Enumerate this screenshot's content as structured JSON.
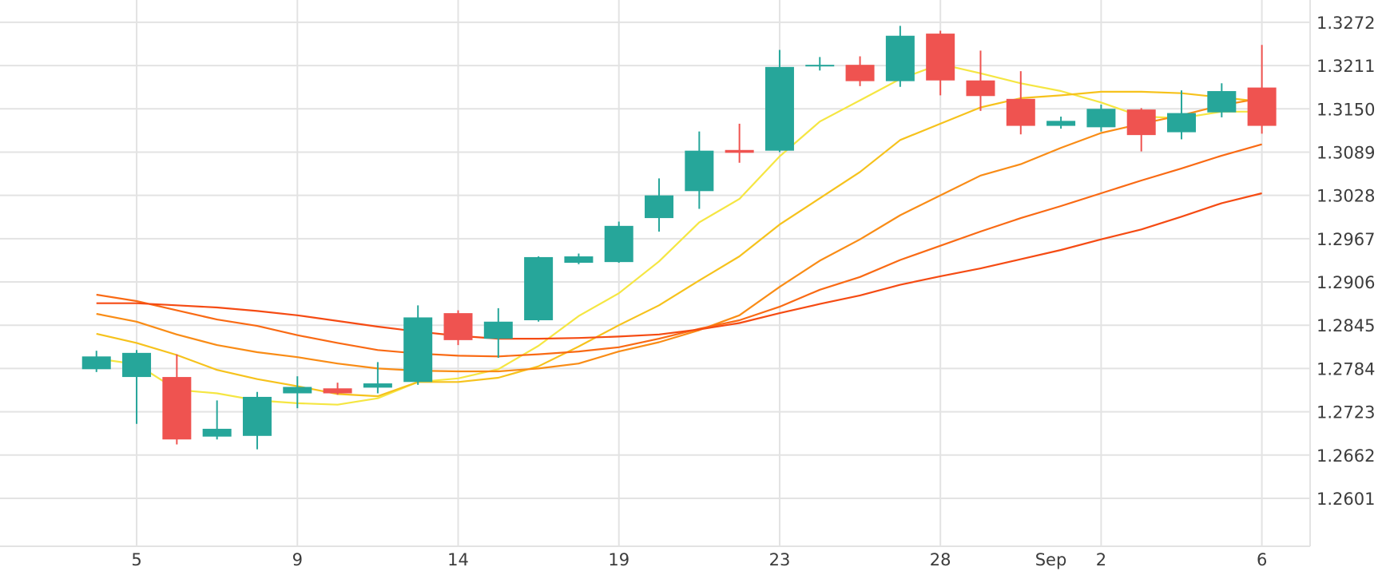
{
  "colors": {
    "up": "#26a69a",
    "down": "#ef5350",
    "grid": "#e3e3e3",
    "text": "#3c3c3c",
    "background": "#ffffff"
  },
  "chart_data": {
    "type": "candlestick",
    "ylim": [
      1.254,
      1.33
    ],
    "y_axis_position": "right",
    "grid": true,
    "y_ticks": [
      {
        "value": 1.3272,
        "label": "1.3272"
      },
      {
        "value": 1.3211,
        "label": "1.3211"
      },
      {
        "value": 1.315,
        "label": "1.3150"
      },
      {
        "value": 1.3089,
        "label": "1.3089"
      },
      {
        "value": 1.3028,
        "label": "1.3028"
      },
      {
        "value": 1.2967,
        "label": "1.2967"
      },
      {
        "value": 1.2906,
        "label": "1.2906"
      },
      {
        "value": 1.2845,
        "label": "1.2845"
      },
      {
        "value": 1.2784,
        "label": "1.2784"
      },
      {
        "value": 1.2723,
        "label": "1.2723"
      },
      {
        "value": 1.2662,
        "label": "1.2662"
      },
      {
        "value": 1.2601,
        "label": "1.2601"
      }
    ],
    "x_index_range": [
      -3.4,
      29.2
    ],
    "x_ticks": [
      {
        "index": 0,
        "label": "5"
      },
      {
        "index": 4,
        "label": "9"
      },
      {
        "index": 8,
        "label": "14"
      },
      {
        "index": 12,
        "label": "19"
      },
      {
        "index": 16,
        "label": "23"
      },
      {
        "index": 20,
        "label": "28"
      },
      {
        "index": 22.75,
        "label": "Sep"
      },
      {
        "index": 24,
        "label": "2"
      },
      {
        "index": 28,
        "label": "6"
      }
    ],
    "x_gridlines": [
      0,
      4,
      8,
      12,
      16,
      20,
      24,
      28
    ],
    "candles": [
      {
        "i": -1,
        "o": 1.2783,
        "h": 1.2809,
        "l": 1.2779,
        "c": 1.2801
      },
      {
        "i": 0,
        "o": 1.2772,
        "h": 1.281,
        "l": 1.2706,
        "c": 1.2806
      },
      {
        "i": 1,
        "o": 1.2772,
        "h": 1.2804,
        "l": 1.2677,
        "c": 1.2684
      },
      {
        "i": 2,
        "o": 1.2688,
        "h": 1.2739,
        "l": 1.2684,
        "c": 1.2699
      },
      {
        "i": 3,
        "o": 1.2689,
        "h": 1.2751,
        "l": 1.267,
        "c": 1.2744
      },
      {
        "i": 4,
        "o": 1.2749,
        "h": 1.2773,
        "l": 1.2728,
        "c": 1.2758
      },
      {
        "i": 5,
        "o": 1.2756,
        "h": 1.2764,
        "l": 1.2747,
        "c": 1.2749
      },
      {
        "i": 6,
        "o": 1.2757,
        "h": 1.2793,
        "l": 1.2749,
        "c": 1.2763
      },
      {
        "i": 7,
        "o": 1.2765,
        "h": 1.2873,
        "l": 1.2761,
        "c": 1.2856
      },
      {
        "i": 8,
        "o": 1.2862,
        "h": 1.2866,
        "l": 1.2817,
        "c": 1.2824
      },
      {
        "i": 9,
        "o": 1.2826,
        "h": 1.2869,
        "l": 1.2799,
        "c": 1.285
      },
      {
        "i": 10,
        "o": 1.2852,
        "h": 1.2942,
        "l": 1.285,
        "c": 1.2941
      },
      {
        "i": 11,
        "o": 1.2933,
        "h": 1.2946,
        "l": 1.2931,
        "c": 1.2942
      },
      {
        "i": 12,
        "o": 1.2934,
        "h": 1.2991,
        "l": 1.2933,
        "c": 1.2985
      },
      {
        "i": 13,
        "o": 1.2996,
        "h": 1.3052,
        "l": 1.2977,
        "c": 1.3028
      },
      {
        "i": 14,
        "o": 1.3034,
        "h": 1.3118,
        "l": 1.3009,
        "c": 1.3091
      },
      {
        "i": 15,
        "o": 1.3092,
        "h": 1.3129,
        "l": 1.3074,
        "c": 1.3088
      },
      {
        "i": 16,
        "o": 1.3091,
        "h": 1.3233,
        "l": 1.3089,
        "c": 1.3209
      },
      {
        "i": 17,
        "o": 1.3212,
        "h": 1.3223,
        "l": 1.3204,
        "c": 1.3212
      },
      {
        "i": 18,
        "o": 1.3212,
        "h": 1.3224,
        "l": 1.3182,
        "c": 1.3189
      },
      {
        "i": 19,
        "o": 1.3189,
        "h": 1.3267,
        "l": 1.3181,
        "c": 1.3253
      },
      {
        "i": 20,
        "o": 1.3256,
        "h": 1.326,
        "l": 1.3169,
        "c": 1.319
      },
      {
        "i": 21,
        "o": 1.319,
        "h": 1.3232,
        "l": 1.3147,
        "c": 1.3168
      },
      {
        "i": 22,
        "o": 1.3164,
        "h": 1.3203,
        "l": 1.3114,
        "c": 1.3126
      },
      {
        "i": 23,
        "o": 1.3126,
        "h": 1.3139,
        "l": 1.3122,
        "c": 1.3133
      },
      {
        "i": 24,
        "o": 1.3124,
        "h": 1.3156,
        "l": 1.3118,
        "c": 1.315
      },
      {
        "i": 25,
        "o": 1.3149,
        "h": 1.3151,
        "l": 1.309,
        "c": 1.3113
      },
      {
        "i": 26,
        "o": 1.3117,
        "h": 1.3176,
        "l": 1.3107,
        "c": 1.3144
      },
      {
        "i": 27,
        "o": 1.3145,
        "h": 1.3186,
        "l": 1.3138,
        "c": 1.3175
      },
      {
        "i": 28,
        "o": 1.318,
        "h": 1.324,
        "l": 1.3115,
        "c": 1.3126
      }
    ],
    "moving_averages": [
      {
        "color": "#f5e642",
        "points": [
          [
            -1,
            1.2798
          ],
          [
            0,
            1.279
          ],
          [
            1,
            1.2754
          ],
          [
            2,
            1.2749
          ],
          [
            3,
            1.2739
          ],
          [
            4,
            1.2735
          ],
          [
            5,
            1.2733
          ],
          [
            6,
            1.2742
          ],
          [
            7,
            1.2765
          ],
          [
            8,
            1.277
          ],
          [
            9,
            1.2783
          ],
          [
            10,
            1.2816
          ],
          [
            11,
            1.2858
          ],
          [
            12,
            1.289
          ],
          [
            13,
            1.2935
          ],
          [
            14,
            1.299
          ],
          [
            15,
            1.3023
          ],
          [
            16,
            1.3083
          ],
          [
            17,
            1.3132
          ],
          [
            18,
            1.3162
          ],
          [
            19,
            1.3192
          ],
          [
            20,
            1.3213
          ],
          [
            21,
            1.32
          ],
          [
            22,
            1.3186
          ],
          [
            23,
            1.3175
          ],
          [
            24,
            1.3159
          ],
          [
            25,
            1.3139
          ],
          [
            26,
            1.3137
          ],
          [
            27,
            1.3146
          ],
          [
            28,
            1.3146
          ]
        ]
      },
      {
        "color": "#f6c21c",
        "points": [
          [
            -1,
            1.2833
          ],
          [
            0,
            1.282
          ],
          [
            1,
            1.2803
          ],
          [
            2,
            1.2782
          ],
          [
            3,
            1.2769
          ],
          [
            4,
            1.2759
          ],
          [
            5,
            1.2748
          ],
          [
            6,
            1.2745
          ],
          [
            7,
            1.2765
          ],
          [
            8,
            1.2765
          ],
          [
            9,
            1.2771
          ],
          [
            10,
            1.2787
          ],
          [
            11,
            1.2815
          ],
          [
            12,
            1.2845
          ],
          [
            13,
            1.2873
          ],
          [
            14,
            1.2908
          ],
          [
            15,
            1.2942
          ],
          [
            16,
            1.2987
          ],
          [
            17,
            1.3024
          ],
          [
            18,
            1.3061
          ],
          [
            19,
            1.3106
          ],
          [
            20,
            1.3129
          ],
          [
            21,
            1.3152
          ],
          [
            22,
            1.3165
          ],
          [
            23,
            1.3169
          ],
          [
            24,
            1.3174
          ],
          [
            25,
            1.3174
          ],
          [
            26,
            1.3172
          ],
          [
            27,
            1.3166
          ],
          [
            28,
            1.316
          ]
        ]
      },
      {
        "color": "#f98c16",
        "points": [
          [
            -1,
            1.2861
          ],
          [
            0,
            1.285
          ],
          [
            1,
            1.2832
          ],
          [
            2,
            1.2817
          ],
          [
            3,
            1.2807
          ],
          [
            4,
            1.28
          ],
          [
            5,
            1.2791
          ],
          [
            6,
            1.2784
          ],
          [
            7,
            1.2781
          ],
          [
            8,
            1.278
          ],
          [
            9,
            1.278
          ],
          [
            10,
            1.2784
          ],
          [
            11,
            1.2791
          ],
          [
            12,
            1.2808
          ],
          [
            13,
            1.2821
          ],
          [
            14,
            1.2838
          ],
          [
            15,
            1.2859
          ],
          [
            16,
            1.2899
          ],
          [
            17,
            1.2936
          ],
          [
            18,
            1.2966
          ],
          [
            19,
            1.3
          ],
          [
            20,
            1.3028
          ],
          [
            21,
            1.3056
          ],
          [
            22,
            1.3072
          ],
          [
            23,
            1.3095
          ],
          [
            24,
            1.3116
          ],
          [
            25,
            1.3129
          ],
          [
            26,
            1.3141
          ],
          [
            27,
            1.3155
          ],
          [
            28,
            1.3165
          ]
        ]
      },
      {
        "color": "#f96a14",
        "points": [
          [
            -1,
            1.2888
          ],
          [
            0,
            1.2879
          ],
          [
            1,
            1.2866
          ],
          [
            2,
            1.2853
          ],
          [
            3,
            1.2844
          ],
          [
            4,
            1.2831
          ],
          [
            5,
            1.282
          ],
          [
            6,
            1.281
          ],
          [
            7,
            1.2805
          ],
          [
            8,
            1.2802
          ],
          [
            9,
            1.2801
          ],
          [
            10,
            1.2804
          ],
          [
            11,
            1.2808
          ],
          [
            12,
            1.2814
          ],
          [
            13,
            1.2826
          ],
          [
            14,
            1.284
          ],
          [
            15,
            1.2852
          ],
          [
            16,
            1.2871
          ],
          [
            17,
            1.2895
          ],
          [
            18,
            1.2913
          ],
          [
            19,
            1.2937
          ],
          [
            20,
            1.2957
          ],
          [
            21,
            1.2977
          ],
          [
            22,
            1.2996
          ],
          [
            23,
            1.3013
          ],
          [
            24,
            1.3031
          ],
          [
            25,
            1.3049
          ],
          [
            26,
            1.3066
          ],
          [
            27,
            1.3084
          ],
          [
            28,
            1.31
          ]
        ]
      },
      {
        "color": "#f54b13",
        "points": [
          [
            -1,
            1.2876
          ],
          [
            0,
            1.2876
          ],
          [
            1,
            1.2873
          ],
          [
            2,
            1.287
          ],
          [
            3,
            1.2865
          ],
          [
            4,
            1.2859
          ],
          [
            5,
            1.2851
          ],
          [
            6,
            1.2843
          ],
          [
            7,
            1.2836
          ],
          [
            8,
            1.283
          ],
          [
            9,
            1.2826
          ],
          [
            10,
            1.2826
          ],
          [
            11,
            1.2827
          ],
          [
            12,
            1.2829
          ],
          [
            13,
            1.2832
          ],
          [
            14,
            1.2839
          ],
          [
            15,
            1.2848
          ],
          [
            16,
            1.2862
          ],
          [
            17,
            1.2875
          ],
          [
            18,
            1.2887
          ],
          [
            19,
            1.2902
          ],
          [
            20,
            1.2914
          ],
          [
            21,
            1.2925
          ],
          [
            22,
            1.2938
          ],
          [
            23,
            1.2951
          ],
          [
            24,
            1.2966
          ],
          [
            25,
            1.298
          ],
          [
            26,
            1.2998
          ],
          [
            27,
            1.3017
          ],
          [
            28,
            1.3031
          ]
        ]
      }
    ]
  }
}
